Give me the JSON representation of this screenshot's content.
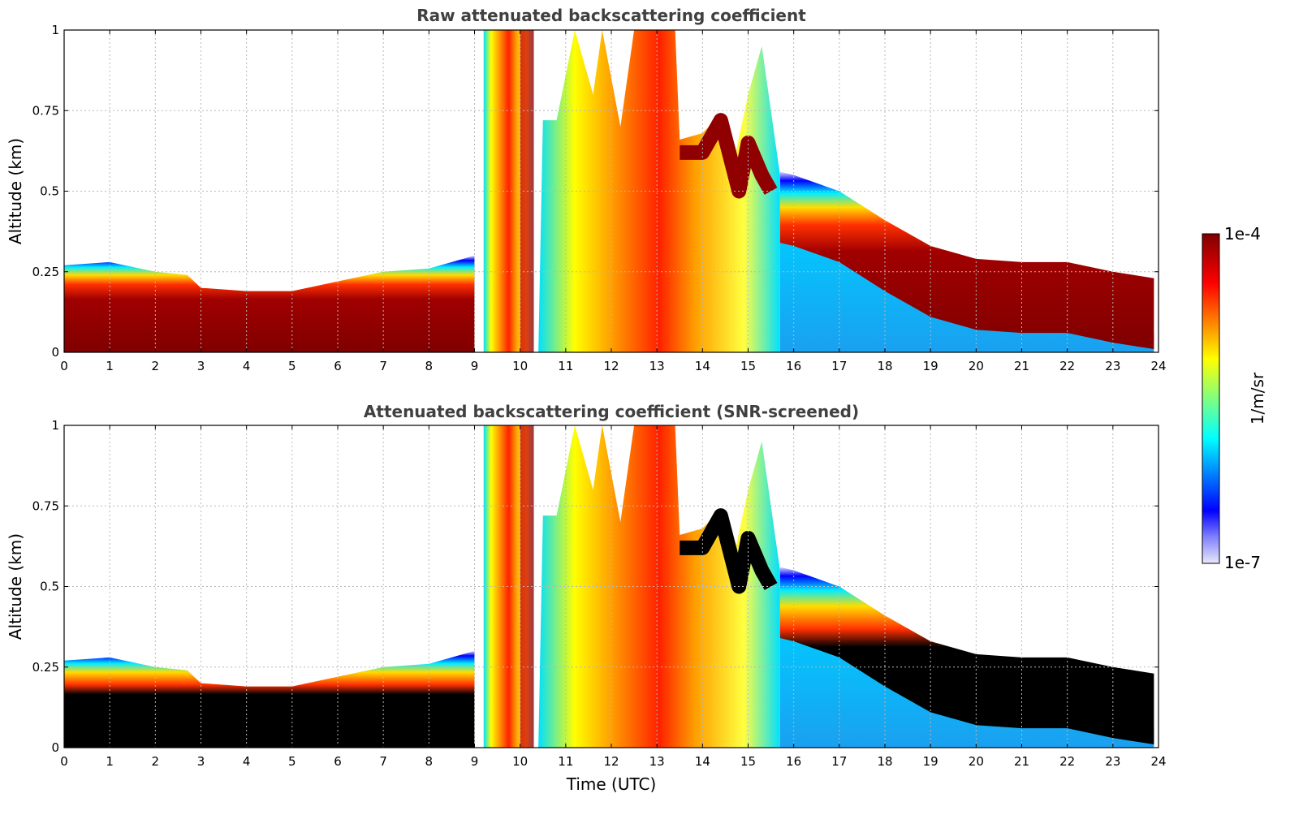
{
  "chart_data": [
    {
      "type": "heatmap",
      "title": "Raw attenuated backscattering coefficient",
      "xlabel": "",
      "ylabel": "Altitude (km)",
      "xlim": [
        0,
        24
      ],
      "ylim": [
        0,
        1
      ],
      "x_ticks": [
        0,
        1,
        2,
        3,
        4,
        5,
        6,
        7,
        8,
        9,
        10,
        11,
        12,
        13,
        14,
        15,
        16,
        17,
        18,
        19,
        20,
        21,
        22,
        23,
        24
      ],
      "y_ticks": [
        0,
        0.25,
        0.5,
        0.75,
        1
      ],
      "y_tick_labels": [
        "0",
        "0.25",
        "0.5",
        "0.75",
        "1"
      ],
      "grid": true,
      "colormap": "jet",
      "screened": false,
      "boundary_layer_top_km": {
        "x": [
          0,
          1,
          2,
          2.7,
          3,
          4,
          5,
          6,
          7,
          8,
          9,
          15.7,
          16,
          17,
          18,
          19,
          20,
          21,
          22,
          23,
          23.9
        ],
        "y": [
          0.27,
          0.28,
          0.25,
          0.24,
          0.2,
          0.19,
          0.19,
          0.22,
          0.25,
          0.26,
          0.3,
          0.56,
          0.55,
          0.5,
          0.41,
          0.33,
          0.29,
          0.28,
          0.28,
          0.25,
          0.23
        ]
      },
      "cloud_periods_utc": [
        [
          9.2,
          10.3
        ],
        [
          10.4,
          15.7
        ]
      ]
    },
    {
      "type": "heatmap",
      "title": "Attenuated backscattering coefficient (SNR-screened)",
      "xlabel": "Time (UTC)",
      "ylabel": "Altitude (km)",
      "xlim": [
        0,
        24
      ],
      "ylim": [
        0,
        1
      ],
      "x_ticks": [
        0,
        1,
        2,
        3,
        4,
        5,
        6,
        7,
        8,
        9,
        10,
        11,
        12,
        13,
        14,
        15,
        16,
        17,
        18,
        19,
        20,
        21,
        22,
        23,
        24
      ],
      "y_ticks": [
        0,
        0.25,
        0.5,
        0.75,
        1
      ],
      "y_tick_labels": [
        "0",
        "0.25",
        "0.5",
        "0.75",
        "1"
      ],
      "grid": true,
      "colormap": "jet",
      "screened": true,
      "boundary_layer_top_km": {
        "x": [
          0,
          1,
          2,
          2.7,
          3,
          4,
          5,
          6,
          7,
          8,
          9,
          15.7,
          16,
          17,
          18,
          19,
          20,
          21,
          22,
          23,
          23.9
        ],
        "y": [
          0.27,
          0.28,
          0.25,
          0.24,
          0.2,
          0.19,
          0.19,
          0.22,
          0.25,
          0.26,
          0.3,
          0.56,
          0.55,
          0.5,
          0.41,
          0.33,
          0.29,
          0.28,
          0.28,
          0.25,
          0.23
        ]
      },
      "cloud_periods_utc": [
        [
          9.2,
          10.3
        ],
        [
          10.4,
          15.7
        ]
      ]
    }
  ],
  "colorbar": {
    "label": "1/m/sr",
    "max_label": "1e-4",
    "min_label": "1e-7",
    "colors": [
      "#e8e8f8",
      "#0000ff",
      "#00ffff",
      "#ffff00",
      "#ff0000",
      "#800000"
    ]
  }
}
